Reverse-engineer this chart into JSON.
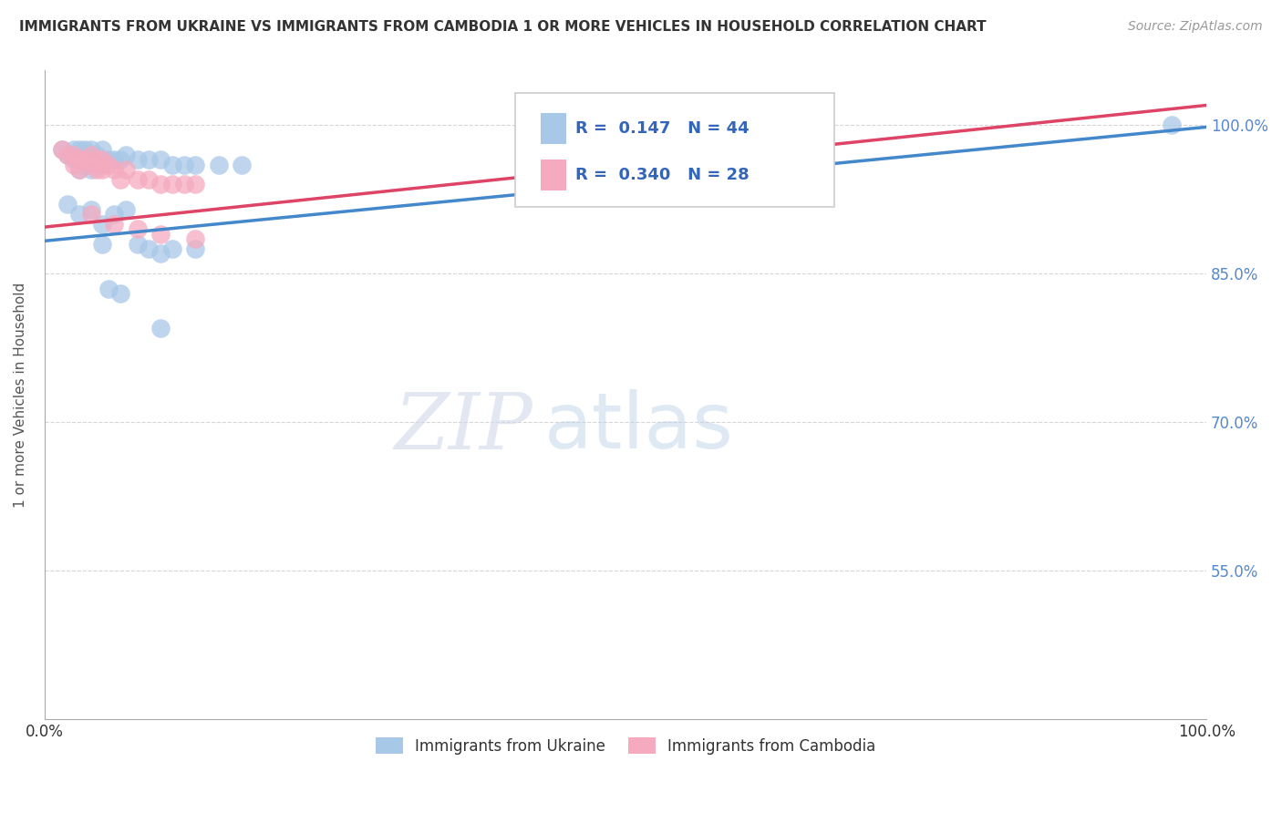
{
  "title": "IMMIGRANTS FROM UKRAINE VS IMMIGRANTS FROM CAMBODIA 1 OR MORE VEHICLES IN HOUSEHOLD CORRELATION CHART",
  "source": "Source: ZipAtlas.com",
  "ylabel": "1 or more Vehicles in Household",
  "xlim": [
    0.0,
    1.0
  ],
  "ylim": [
    0.4,
    1.055
  ],
  "yticks": [
    0.55,
    0.7,
    0.85,
    1.0
  ],
  "ytick_labels": [
    "55.0%",
    "70.0%",
    "85.0%",
    "100.0%"
  ],
  "xticks": [
    0.0,
    0.25,
    0.5,
    0.75,
    1.0
  ],
  "xtick_labels": [
    "0.0%",
    "",
    "",
    "",
    "100.0%"
  ],
  "ukraine_R": 0.147,
  "ukraine_N": 44,
  "cambodia_R": 0.34,
  "cambodia_N": 28,
  "ukraine_color": "#a8c8e8",
  "cambodia_color": "#f5aabf",
  "ukraine_line_color": "#4488cc",
  "cambodia_line_color": "#dd4466",
  "legend_label_ukraine": "Immigrants from Ukraine",
  "legend_label_cambodia": "Immigrants from Cambodia",
  "ukraine_x": [
    0.015,
    0.02,
    0.025,
    0.025,
    0.03,
    0.03,
    0.03,
    0.035,
    0.035,
    0.04,
    0.04,
    0.04,
    0.045,
    0.045,
    0.05,
    0.05,
    0.055,
    0.06,
    0.065,
    0.07,
    0.08,
    0.09,
    0.1,
    0.11,
    0.12,
    0.13,
    0.15,
    0.17,
    0.02,
    0.03,
    0.04,
    0.05,
    0.06,
    0.07,
    0.05,
    0.08,
    0.09,
    0.1,
    0.11,
    0.13,
    0.055,
    0.065,
    0.1,
    0.97
  ],
  "ukraine_y": [
    0.975,
    0.97,
    0.975,
    0.965,
    0.975,
    0.965,
    0.955,
    0.975,
    0.96,
    0.975,
    0.965,
    0.955,
    0.97,
    0.96,
    0.975,
    0.96,
    0.965,
    0.965,
    0.965,
    0.97,
    0.965,
    0.965,
    0.965,
    0.96,
    0.96,
    0.96,
    0.96,
    0.96,
    0.92,
    0.91,
    0.915,
    0.9,
    0.91,
    0.915,
    0.88,
    0.88,
    0.875,
    0.87,
    0.875,
    0.875,
    0.835,
    0.83,
    0.795,
    1.0
  ],
  "cambodia_x": [
    0.015,
    0.02,
    0.025,
    0.025,
    0.03,
    0.03,
    0.035,
    0.04,
    0.04,
    0.045,
    0.045,
    0.05,
    0.05,
    0.055,
    0.06,
    0.065,
    0.07,
    0.08,
    0.09,
    0.1,
    0.11,
    0.12,
    0.13,
    0.04,
    0.06,
    0.08,
    0.1,
    0.13
  ],
  "cambodia_y": [
    0.975,
    0.97,
    0.97,
    0.96,
    0.965,
    0.955,
    0.965,
    0.97,
    0.96,
    0.965,
    0.955,
    0.965,
    0.955,
    0.96,
    0.955,
    0.945,
    0.955,
    0.945,
    0.945,
    0.94,
    0.94,
    0.94,
    0.94,
    0.91,
    0.9,
    0.895,
    0.89,
    0.885
  ],
  "ukraine_trend_x": [
    0.0,
    1.0
  ],
  "ukraine_trend_y": [
    0.883,
    0.998
  ],
  "cambodia_trend_x": [
    0.0,
    1.0
  ],
  "cambodia_trend_y": [
    0.897,
    1.02
  ],
  "watermark_zip": "ZIP",
  "watermark_atlas": "atlas",
  "background_color": "#ffffff",
  "grid_color": "#cccccc"
}
